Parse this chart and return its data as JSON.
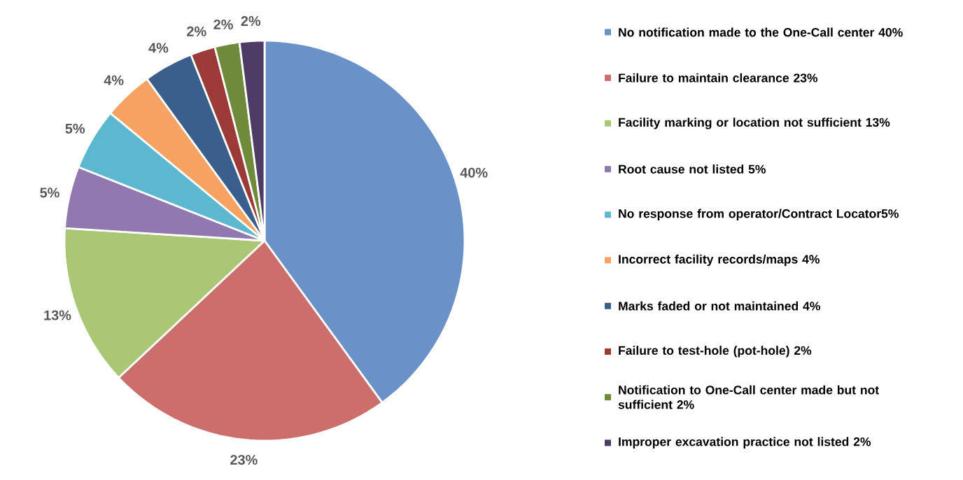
{
  "chart_data": {
    "type": "pie",
    "categories": [
      "No notification made to the One-Call center 40%",
      "Failure to maintain clearance 23%",
      "Facility marking or location not sufficient 13%",
      "Root cause not listed 5%",
      "No response from operator/Contract Locator5%",
      "Incorrect facility records/maps 4%",
      "Marks faded or not maintained 4%",
      "Failure to test-hole (pot-hole) 2%",
      "Notification to One-Call center made but not sufficient 2%",
      "Improper excavation practice not listed 2%"
    ],
    "values": [
      40,
      23,
      13,
      5,
      5,
      4,
      4,
      2,
      2,
      2
    ],
    "value_labels": [
      "40%",
      "23%",
      "13%",
      "5%",
      "5%",
      "4%",
      "4%",
      "2%",
      "2%",
      "2%"
    ],
    "colors": [
      "#6a92c8",
      "#cc6f6c",
      "#a9c774",
      "#9178b0",
      "#5cb8cf",
      "#f5a263",
      "#3b5f8c",
      "#9b3a37",
      "#6f8a3a",
      "#4e3b66"
    ],
    "legend": "right"
  }
}
